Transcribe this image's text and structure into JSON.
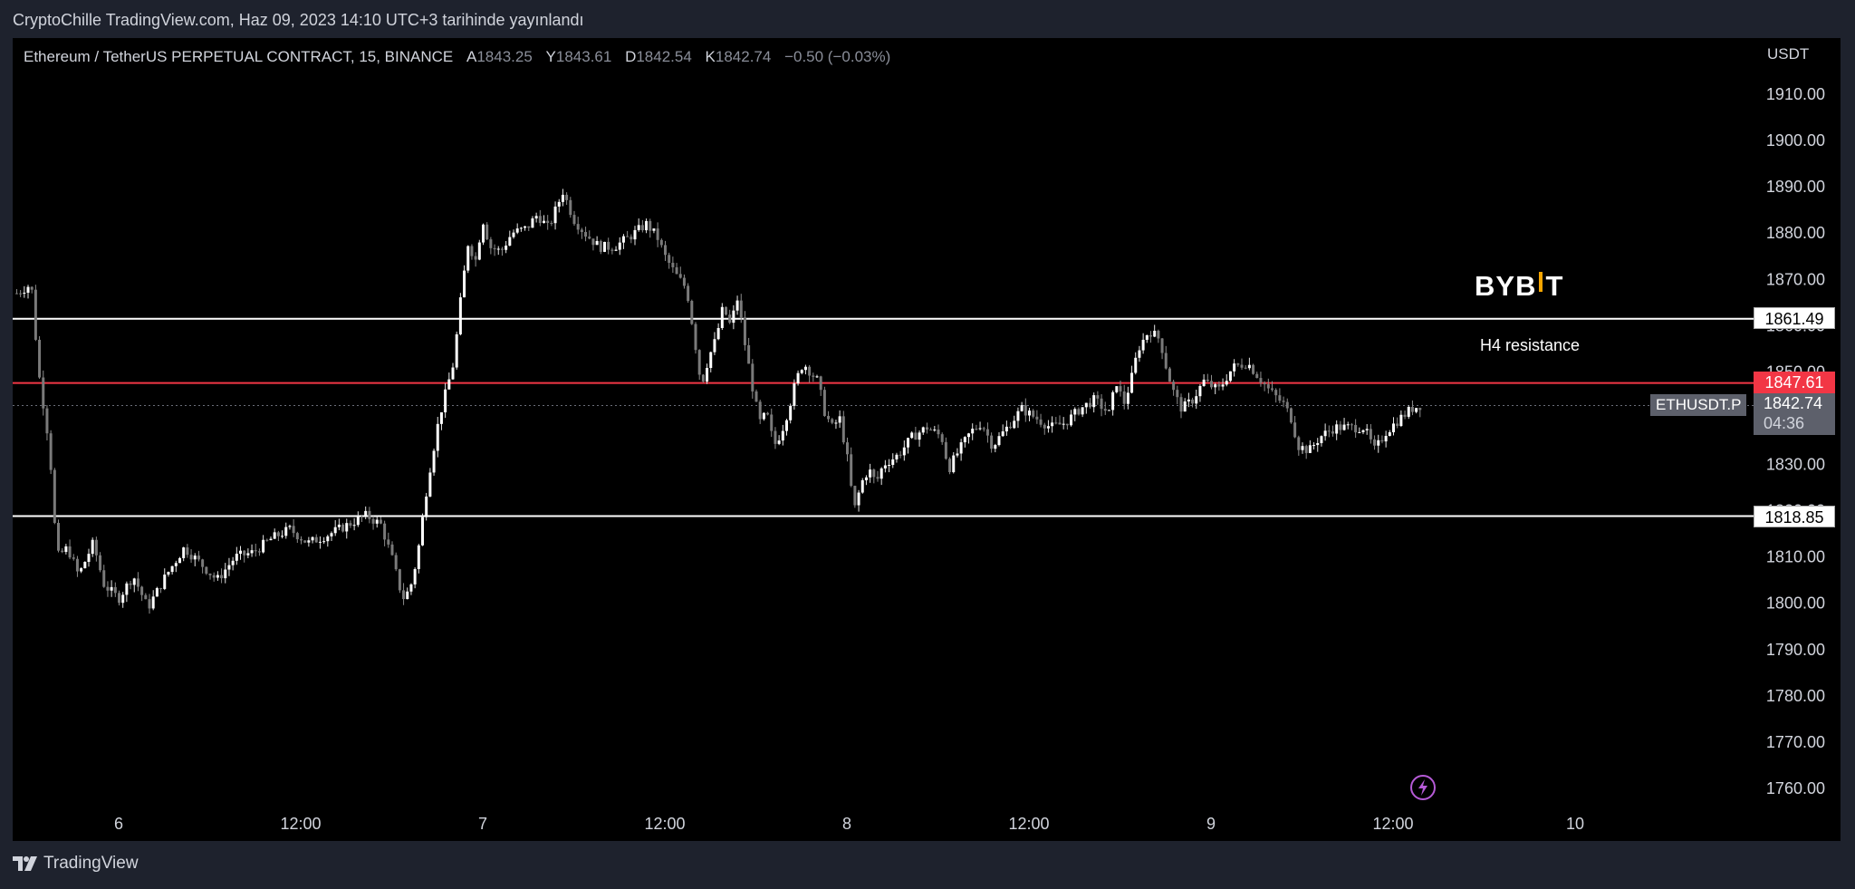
{
  "caption": "CryptoChille TradingView.com, Haz 09, 2023 14:10 UTC+3 tarihinde yayınlandı",
  "symbol": {
    "title": "Ethereum / TetherUS PERPETUAL CONTRACT, 15, BINANCE",
    "open_label": "A",
    "open": "1843.25",
    "high_label": "Y",
    "high": "1843.61",
    "low_label": "D",
    "low": "1842.54",
    "close_label": "K",
    "close": "1842.74",
    "change": "−0.50 (−0.03%)"
  },
  "currency": "USDT",
  "price_tags": {
    "upper_line": "1861.49",
    "lower_line": "1818.85",
    "red_line": "1847.61",
    "last": "1842.74",
    "countdown": "04:36",
    "ticker": "ETHUSDT.P"
  },
  "annotation": "H4 resistance",
  "watermark": "BYBIT",
  "footer": "TradingView",
  "icons": [
    "flash-icon",
    "tradingview-logo-icon"
  ],
  "colors": {
    "background": "#000000",
    "red_line": "#f23645",
    "level_line": "#ffffff",
    "bybit_accent": "#f7a600"
  },
  "chart_data": {
    "type": "candlestick",
    "title": "",
    "y_ticks": [
      "1910.00",
      "1900.00",
      "1890.00",
      "1880.00",
      "1870.00",
      "1860.00",
      "1850.00",
      "1840.00",
      "1830.00",
      "1820.00",
      "1810.00",
      "1800.00",
      "1790.00",
      "1780.00",
      "1770.00",
      "1760.00"
    ],
    "ylim": [
      1757,
      1914
    ],
    "x_ticks": [
      "6",
      "12:00",
      "7",
      "12:00",
      "8",
      "12:00",
      "9",
      "12:00",
      "10"
    ],
    "horizontal_levels": [
      {
        "value": 1861.49,
        "color": "#ffffff"
      },
      {
        "value": 1847.61,
        "color": "#f23645"
      },
      {
        "value": 1818.85,
        "color": "#ffffff"
      }
    ],
    "last_price": 1842.74,
    "close_path": [
      [
        -0.28,
        1867
      ],
      [
        -0.24,
        1869
      ],
      [
        -0.22,
        1850
      ],
      [
        -0.19,
        1834
      ],
      [
        -0.17,
        1810
      ],
      [
        -0.14,
        1812
      ],
      [
        -0.11,
        1806
      ],
      [
        -0.07,
        1813
      ],
      [
        -0.04,
        1804
      ],
      [
        0,
        1801
      ],
      [
        0.04,
        1806
      ],
      [
        0.08,
        1799
      ],
      [
        0.13,
        1806
      ],
      [
        0.18,
        1812
      ],
      [
        0.22,
        1809
      ],
      [
        0.27,
        1805
      ],
      [
        0.32,
        1810
      ],
      [
        0.37,
        1811
      ],
      [
        0.42,
        1814
      ],
      [
        0.47,
        1816
      ],
      [
        0.52,
        1813
      ],
      [
        0.58,
        1815
      ],
      [
        0.63,
        1817
      ],
      [
        0.68,
        1819
      ],
      [
        0.72,
        1817
      ],
      [
        0.75,
        1810
      ],
      [
        0.78,
        1801
      ],
      [
        0.8,
        1803
      ],
      [
        0.82,
        1810
      ],
      [
        0.85,
        1827
      ],
      [
        0.88,
        1840
      ],
      [
        0.9,
        1846
      ],
      [
        0.92,
        1852
      ],
      [
        0.94,
        1866
      ],
      [
        0.96,
        1878
      ],
      [
        0.98,
        1874
      ],
      [
        1.0,
        1883
      ],
      [
        1.02,
        1877
      ],
      [
        1.05,
        1876
      ],
      [
        1.08,
        1880
      ],
      [
        1.12,
        1881
      ],
      [
        1.15,
        1884
      ],
      [
        1.18,
        1881
      ],
      [
        1.22,
        1889
      ],
      [
        1.25,
        1883
      ],
      [
        1.28,
        1880
      ],
      [
        1.32,
        1877
      ],
      [
        1.36,
        1877
      ],
      [
        1.4,
        1879
      ],
      [
        1.45,
        1882
      ],
      [
        1.48,
        1879
      ],
      [
        1.5,
        1875
      ],
      [
        1.53,
        1871
      ],
      [
        1.56,
        1868
      ],
      [
        1.58,
        1858
      ],
      [
        1.6,
        1847
      ],
      [
        1.62,
        1853
      ],
      [
        1.64,
        1857
      ],
      [
        1.66,
        1864
      ],
      [
        1.68,
        1860
      ],
      [
        1.7,
        1866
      ],
      [
        1.72,
        1856
      ],
      [
        1.74,
        1847
      ],
      [
        1.76,
        1839
      ],
      [
        1.78,
        1841
      ],
      [
        1.8,
        1834
      ],
      [
        1.82,
        1837
      ],
      [
        1.84,
        1842
      ],
      [
        1.86,
        1848
      ],
      [
        1.88,
        1852
      ],
      [
        1.9,
        1850
      ],
      [
        1.92,
        1848
      ],
      [
        1.94,
        1841
      ],
      [
        1.96,
        1838
      ],
      [
        1.98,
        1840
      ],
      [
        2.0,
        1832
      ],
      [
        2.02,
        1820
      ],
      [
        2.04,
        1826
      ],
      [
        2.06,
        1829
      ],
      [
        2.08,
        1826
      ],
      [
        2.1,
        1830
      ],
      [
        2.14,
        1832
      ],
      [
        2.18,
        1836
      ],
      [
        2.22,
        1838
      ],
      [
        2.26,
        1836
      ],
      [
        2.28,
        1829
      ],
      [
        2.3,
        1832
      ],
      [
        2.34,
        1837
      ],
      [
        2.37,
        1839
      ],
      [
        2.4,
        1834
      ],
      [
        2.44,
        1838
      ],
      [
        2.48,
        1842
      ],
      [
        2.52,
        1840
      ],
      [
        2.56,
        1838
      ],
      [
        2.6,
        1839
      ],
      [
        2.64,
        1842
      ],
      [
        2.68,
        1844
      ],
      [
        2.72,
        1841
      ],
      [
        2.74,
        1848
      ],
      [
        2.76,
        1843
      ],
      [
        2.78,
        1848
      ],
      [
        2.8,
        1855
      ],
      [
        2.83,
        1859
      ],
      [
        2.86,
        1857
      ],
      [
        2.88,
        1850
      ],
      [
        2.9,
        1845
      ],
      [
        2.92,
        1842
      ],
      [
        2.95,
        1844
      ],
      [
        2.98,
        1848
      ],
      [
        3.02,
        1846
      ],
      [
        3.06,
        1851
      ],
      [
        3.1,
        1852
      ],
      [
        3.13,
        1849
      ],
      [
        3.16,
        1846
      ],
      [
        3.2,
        1843
      ],
      [
        3.22,
        1840
      ],
      [
        3.24,
        1834
      ],
      [
        3.27,
        1833
      ],
      [
        3.3,
        1836
      ],
      [
        3.34,
        1838
      ],
      [
        3.38,
        1838
      ],
      [
        3.42,
        1838
      ],
      [
        3.45,
        1833
      ],
      [
        3.48,
        1837
      ],
      [
        3.52,
        1840
      ],
      [
        3.55,
        1842
      ],
      [
        3.58,
        1843
      ]
    ]
  }
}
